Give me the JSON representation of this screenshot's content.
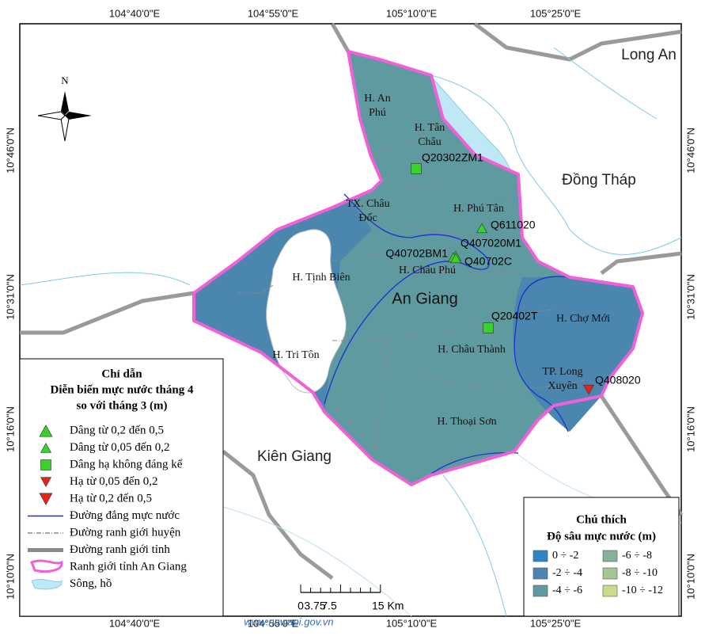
{
  "coordinates": {
    "top": [
      "104°40'0\"E",
      "104°55'0\"E",
      "105°10'0\"E",
      "105°25'0\"E"
    ],
    "bottom": [
      "104°40'0\"E",
      "104°55'0\"E",
      "105°10'0\"E",
      "105°25'0\"E"
    ],
    "left": [
      "10°46'0\"N",
      "10°31'0\"N",
      "10°16'0\"N",
      "10°10'0\"N"
    ],
    "right": [
      "10°46'0\"N",
      "10°31'0\"N",
      "10°16'0\"N",
      "10°10'0\"N"
    ]
  },
  "north": "N",
  "neighbors": [
    "Long An",
    "Đồng Tháp",
    "Kiên Giang"
  ],
  "province": "An Giang",
  "districts": [
    [
      "H. An",
      "Phú"
    ],
    [
      "H. Tân",
      "Châu"
    ],
    [
      "TX. Châu",
      "Đốc"
    ],
    [
      "H. Phú Tân"
    ],
    [
      "H. Tịnh Biên"
    ],
    [
      "H. Châu Phú"
    ],
    [
      "H. Tri Tôn"
    ],
    [
      "H. Châu Thành"
    ],
    [
      "H. Chợ Mới"
    ],
    [
      "TP. Long",
      "Xuyên"
    ],
    [
      "H. Thoại Sơn"
    ]
  ],
  "stations": [
    {
      "label": "Q20302ZM1",
      "shape": "square",
      "color": "#39d12a"
    },
    {
      "label": "Q611020",
      "shape": "up",
      "color": "#39d12a"
    },
    {
      "label": "Q407020M1",
      "shape": "up",
      "color": "#39d12a"
    },
    {
      "label": "Q40702BM1",
      "shape": "up",
      "color": "#39d12a"
    },
    {
      "label": "Q40702C",
      "shape": "up",
      "color": "#39d12a"
    },
    {
      "label": "Q20402T",
      "shape": "square",
      "color": "#39d12a"
    },
    {
      "label": "Q408020",
      "shape": "down",
      "color": "#e8231c"
    }
  ],
  "legend": {
    "title": [
      "Chỉ dẫn",
      "Diễn biến mực nước tháng 4",
      "so với tháng 3 (m)"
    ],
    "items": [
      {
        "label": "Dâng từ 0,2 đến 0,5",
        "symbol": "up-large",
        "color": "#39d12a"
      },
      {
        "label": "Dâng từ 0,05 đến 0,2",
        "symbol": "up-small",
        "color": "#39d12a"
      },
      {
        "label": "Dâng hạ không đáng kể",
        "symbol": "square",
        "color": "#39d12a"
      },
      {
        "label": "Hạ từ 0,05 đến 0,2",
        "symbol": "down-small",
        "color": "#e8231c"
      },
      {
        "label": "Hạ từ 0,2 đến 0,5",
        "symbol": "down-large",
        "color": "#e8231c"
      },
      {
        "label": "Đường đẳng mực nước",
        "symbol": "line",
        "color": "#1f2fd6"
      },
      {
        "label": "Đường ranh giới huyện",
        "symbol": "dashdot",
        "color": "#8a8a8a"
      },
      {
        "label": "Đường ranh giới tỉnh",
        "symbol": "thick",
        "color": "#8a8a8a"
      },
      {
        "label": "Ranh giới tỉnh An Giang",
        "symbol": "pink",
        "color": "#f060d8"
      },
      {
        "label": "Sông, hồ",
        "symbol": "water",
        "color": "#bfe8f6"
      }
    ]
  },
  "depth_legend": {
    "title": "Chú thích",
    "subtitle": "Độ sâu mực nước (m)",
    "classes": [
      {
        "label": "0 ÷ -2",
        "color": "#2e86c6"
      },
      {
        "label": "-2 ÷ -4",
        "color": "#4a86ae"
      },
      {
        "label": "-4 ÷ -6",
        "color": "#5f9aa0"
      },
      {
        "label": "-6 ÷ -8",
        "color": "#86b09a"
      },
      {
        "label": "-8 ÷ -10",
        "color": "#a4c690"
      },
      {
        "label": "-10 ÷ -12",
        "color": "#c7dc8c"
      }
    ]
  },
  "scale_bar": [
    "0",
    "3.75",
    "7.5",
    "15 Km"
  ],
  "watermark": "www.nawapi.gov.vn"
}
